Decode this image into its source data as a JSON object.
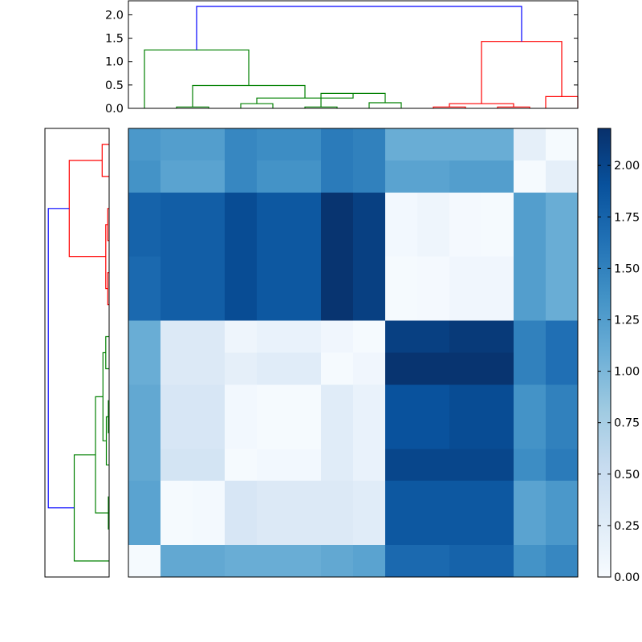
{
  "chart_data": {
    "type": "heatmap",
    "title": "",
    "colormap": "Blues",
    "value_range": [
      0.0,
      2.18
    ],
    "size": 14,
    "matrix": [
      [
        1.3,
        1.25,
        1.25,
        1.45,
        1.4,
        1.4,
        1.55,
        1.5,
        1.1,
        1.1,
        1.1,
        1.1,
        0.2,
        0.02
      ],
      [
        1.35,
        1.2,
        1.2,
        1.45,
        1.35,
        1.35,
        1.55,
        1.5,
        1.2,
        1.2,
        1.25,
        1.25,
        0.02,
        0.2
      ],
      [
        1.75,
        1.8,
        1.8,
        1.95,
        1.85,
        1.85,
        2.15,
        2.05,
        0.05,
        0.1,
        0.03,
        0.02,
        1.25,
        1.1
      ],
      [
        1.75,
        1.8,
        1.8,
        1.95,
        1.85,
        1.85,
        2.15,
        2.05,
        0.05,
        0.1,
        0.03,
        0.02,
        1.25,
        1.1
      ],
      [
        1.7,
        1.8,
        1.8,
        1.95,
        1.85,
        1.85,
        2.15,
        2.05,
        0.02,
        0.03,
        0.08,
        0.08,
        1.25,
        1.1
      ],
      [
        1.7,
        1.8,
        1.8,
        1.95,
        1.85,
        1.85,
        2.15,
        2.05,
        0.02,
        0.03,
        0.08,
        0.08,
        1.25,
        1.1
      ],
      [
        1.1,
        0.3,
        0.3,
        0.1,
        0.15,
        0.15,
        0.08,
        0.02,
        2.05,
        2.05,
        2.1,
        2.1,
        1.5,
        1.65
      ],
      [
        1.1,
        0.3,
        0.3,
        0.2,
        0.25,
        0.25,
        0.02,
        0.08,
        2.15,
        2.15,
        2.15,
        2.15,
        1.5,
        1.65
      ],
      [
        1.15,
        0.35,
        0.35,
        0.05,
        0.02,
        0.02,
        0.25,
        0.15,
        1.9,
        1.9,
        1.95,
        1.95,
        1.35,
        1.5
      ],
      [
        1.15,
        0.35,
        0.35,
        0.05,
        0.02,
        0.02,
        0.25,
        0.15,
        1.9,
        1.9,
        1.95,
        1.95,
        1.35,
        1.5
      ],
      [
        1.15,
        0.4,
        0.4,
        0.02,
        0.05,
        0.05,
        0.25,
        0.15,
        2.0,
        2.0,
        2.0,
        2.0,
        1.4,
        1.55
      ],
      [
        1.2,
        0.02,
        0.04,
        0.35,
        0.3,
        0.3,
        0.3,
        0.25,
        1.85,
        1.85,
        1.85,
        1.85,
        1.2,
        1.3
      ],
      [
        1.2,
        0.02,
        0.04,
        0.35,
        0.3,
        0.3,
        0.3,
        0.25,
        1.85,
        1.85,
        1.85,
        1.85,
        1.2,
        1.3
      ],
      [
        0.02,
        1.15,
        1.15,
        1.1,
        1.1,
        1.1,
        1.15,
        1.2,
        1.7,
        1.7,
        1.75,
        1.75,
        1.35,
        1.45
      ]
    ],
    "colorbar": {
      "ticks": [
        0.0,
        0.25,
        0.5,
        0.75,
        1.0,
        1.25,
        1.5,
        1.75,
        2.0
      ],
      "tick_labels": [
        "0.00",
        "0.25",
        "0.50",
        "0.75",
        "1.00",
        "1.25",
        "1.50",
        "1.75",
        "2.00"
      ]
    },
    "top_dendrogram": {
      "ylim": [
        0,
        2.3
      ],
      "yticks": [
        0.0,
        0.5,
        1.0,
        1.5,
        2.0
      ],
      "ytick_labels": [
        "0.0",
        "0.5",
        "1.0",
        "1.5",
        "2.0"
      ],
      "links": [
        {
          "x": [
            1.5,
            1.5,
            2.5,
            2.5
          ],
          "h": [
            0,
            0.03,
            0.03,
            0
          ],
          "color": "#008000"
        },
        {
          "x": [
            3.5,
            3.5,
            4.5,
            4.5
          ],
          "h": [
            0,
            0.1,
            0.1,
            0
          ],
          "color": "#008000"
        },
        {
          "x": [
            5.5,
            5.5,
            6.5,
            6.5
          ],
          "h": [
            0,
            0.03,
            0.03,
            0
          ],
          "color": "#008000"
        },
        {
          "x": [
            6.0,
            6.0,
            8.0,
            8.0
          ],
          "h": [
            0.03,
            0.32,
            0.32,
            0.12
          ],
          "color": "#008000"
        },
        {
          "x": [
            7.5,
            7.5,
            8.5,
            8.5
          ],
          "h": [
            0,
            0.12,
            0.12,
            0
          ],
          "color": "#008000"
        },
        {
          "x": [
            4.0,
            4.0,
            7.0,
            7.0
          ],
          "h": [
            0.1,
            0.22,
            0.22,
            0.32
          ],
          "color": "#008000"
        },
        {
          "x": [
            2.0,
            2.0,
            5.5,
            5.5
          ],
          "h": [
            0.03,
            0.49,
            0.49,
            0.22
          ],
          "color": "#008000"
        },
        {
          "x": [
            0.5,
            0.5,
            3.75,
            3.75
          ],
          "h": [
            0,
            1.25,
            1.25,
            0.49
          ],
          "color": "#008000"
        },
        {
          "x": [
            9.5,
            9.5,
            10.5,
            10.5
          ],
          "h": [
            0,
            0.03,
            0.03,
            0
          ],
          "color": "#ff0000"
        },
        {
          "x": [
            11.5,
            11.5,
            12.5,
            12.5
          ],
          "h": [
            0,
            0.03,
            0.03,
            0
          ],
          "color": "#ff0000"
        },
        {
          "x": [
            10.0,
            10.0,
            12.0,
            12.0
          ],
          "h": [
            0.03,
            0.1,
            0.1,
            0.03
          ],
          "color": "#ff0000"
        },
        {
          "x": [
            13.0,
            13.0,
            14.0,
            14.0
          ],
          "h": [
            0,
            0.25,
            0.25,
            0
          ],
          "color": "#ff0000"
        },
        {
          "x": [
            11.0,
            11.0,
            13.5,
            13.5
          ],
          "h": [
            0.1,
            1.43,
            1.43,
            0.25
          ],
          "color": "#ff0000"
        },
        {
          "x": [
            2.125,
            2.125,
            12.25,
            12.25
          ],
          "h": [
            1.25,
            2.18,
            2.18,
            1.43
          ],
          "color": "#0000ff"
        }
      ]
    },
    "left_dendrogram": {
      "links": [
        {
          "r": [
            0.5,
            0.5,
            1.5,
            1.5
          ],
          "h": [
            0,
            0.25,
            0.25,
            0
          ],
          "color": "#ff0000"
        },
        {
          "r": [
            2.5,
            2.5,
            3.5,
            3.5
          ],
          "h": [
            0,
            0.05,
            0.05,
            0
          ],
          "color": "#ff0000"
        },
        {
          "r": [
            4.5,
            4.5,
            5.5,
            5.5
          ],
          "h": [
            0,
            0.05,
            0.05,
            0
          ],
          "color": "#ff0000"
        },
        {
          "r": [
            3.0,
            3.0,
            5.0,
            5.0
          ],
          "h": [
            0.05,
            0.12,
            0.12,
            0.05
          ],
          "color": "#ff0000"
        },
        {
          "r": [
            1.0,
            1.0,
            4.0,
            4.0
          ],
          "h": [
            0.25,
            1.43,
            1.43,
            0.12
          ],
          "color": "#ff0000"
        },
        {
          "r": [
            6.5,
            6.5,
            7.5,
            7.5
          ],
          "h": [
            0,
            0.12,
            0.12,
            0
          ],
          "color": "#008000"
        },
        {
          "r": [
            8.5,
            8.5,
            9.5,
            9.5
          ],
          "h": [
            0,
            0.03,
            0.03,
            0
          ],
          "color": "#008000"
        },
        {
          "r": [
            9.0,
            9.0,
            10.5,
            10.5
          ],
          "h": [
            0.03,
            0.1,
            0.1,
            0
          ],
          "color": "#008000"
        },
        {
          "r": [
            7.0,
            7.0,
            9.75,
            9.75
          ],
          "h": [
            0.12,
            0.22,
            0.22,
            0.1
          ],
          "color": "#008000"
        },
        {
          "r": [
            11.5,
            11.5,
            12.5,
            12.5
          ],
          "h": [
            0,
            0.03,
            0.03,
            0
          ],
          "color": "#008000"
        },
        {
          "r": [
            8.375,
            8.375,
            12.0,
            12.0
          ],
          "h": [
            0.22,
            0.49,
            0.49,
            0.03
          ],
          "color": "#008000"
        },
        {
          "r": [
            10.1875,
            10.1875,
            13.5,
            13.5
          ],
          "h": [
            0.49,
            1.25,
            1.25,
            0
          ],
          "color": "#008000"
        },
        {
          "r": [
            2.5,
            2.5,
            11.84,
            11.84
          ],
          "h": [
            1.43,
            2.18,
            2.18,
            1.25
          ],
          "color": "#0000ff"
        }
      ]
    }
  }
}
